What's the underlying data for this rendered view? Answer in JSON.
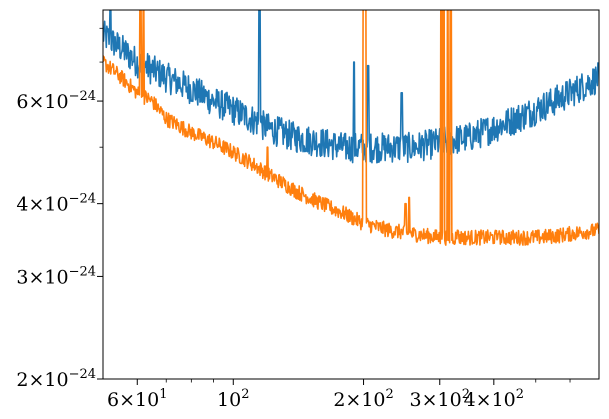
{
  "chart_data": {
    "type": "line",
    "title": "",
    "xlabel": "",
    "ylabel": "",
    "x_scale": "log",
    "y_scale": "log",
    "xlim": [
      50,
      700
    ],
    "ylim": [
      2e-24,
      8.6e-24
    ],
    "grid": false,
    "legend": "none",
    "x_ticks": [
      {
        "value": 60,
        "mant": "6",
        "exp": "1"
      },
      {
        "value": 100,
        "mant": "",
        "exp": "2"
      },
      {
        "value": 200,
        "mant": "2",
        "exp": "2"
      },
      {
        "value": 300,
        "mant": "3",
        "exp": "2"
      },
      {
        "value": 400,
        "mant": "4",
        "exp": "2"
      }
    ],
    "y_ticks": [
      {
        "value": 2e-24,
        "mant": "2",
        "exp": "−24"
      },
      {
        "value": 3e-24,
        "mant": "3",
        "exp": "−24"
      },
      {
        "value": 4e-24,
        "mant": "4",
        "exp": "−24"
      },
      {
        "value": 6e-24,
        "mant": "6",
        "exp": "−24"
      }
    ],
    "series": [
      {
        "color": "#1f77b4",
        "points": [
          [
            50,
            7.8e-24
          ],
          [
            55,
            7.4e-24
          ],
          [
            60,
            7e-24
          ],
          [
            65,
            6.8e-24
          ],
          [
            70,
            6.6e-24
          ],
          [
            80,
            6.3e-24
          ],
          [
            90,
            6e-24
          ],
          [
            100,
            5.8e-24
          ],
          [
            110,
            5.6e-24
          ],
          [
            120,
            5.4e-24
          ],
          [
            140,
            5.2e-24
          ],
          [
            160,
            5.1e-24
          ],
          [
            180,
            5e-24
          ],
          [
            200,
            5e-24
          ],
          [
            230,
            5e-24
          ],
          [
            260,
            5e-24
          ],
          [
            300,
            5.1e-24
          ],
          [
            350,
            5.2e-24
          ],
          [
            400,
            5.4e-24
          ],
          [
            450,
            5.6e-24
          ],
          [
            500,
            5.8e-24
          ],
          [
            550,
            6e-24
          ],
          [
            600,
            6.2e-24
          ],
          [
            650,
            6.4e-24
          ],
          [
            700,
            6.6e-24
          ]
        ],
        "noise": 0.06,
        "spikes": [
          [
            52,
            9e-24
          ],
          [
            115,
            9e-24
          ],
          [
            190,
            7e-24
          ],
          [
            205,
            6.9e-24
          ],
          [
            245,
            6.2e-24
          ]
        ]
      },
      {
        "color": "#ff7f0e",
        "points": [
          [
            50,
            7e-24
          ],
          [
            55,
            6.6e-24
          ],
          [
            60,
            6.2e-24
          ],
          [
            65,
            6e-24
          ],
          [
            70,
            5.6e-24
          ],
          [
            80,
            5.3e-24
          ],
          [
            90,
            5.1e-24
          ],
          [
            100,
            4.9e-24
          ],
          [
            110,
            4.7e-24
          ],
          [
            120,
            4.5e-24
          ],
          [
            140,
            4.2e-24
          ],
          [
            160,
            4e-24
          ],
          [
            180,
            3.85e-24
          ],
          [
            200,
            3.7e-24
          ],
          [
            230,
            3.6e-24
          ],
          [
            260,
            3.55e-24
          ],
          [
            300,
            3.5e-24
          ],
          [
            350,
            3.5e-24
          ],
          [
            400,
            3.5e-24
          ],
          [
            450,
            3.5e-24
          ],
          [
            500,
            3.5e-24
          ],
          [
            550,
            3.52e-24
          ],
          [
            600,
            3.55e-24
          ],
          [
            650,
            3.58e-24
          ],
          [
            700,
            3.6e-24
          ]
        ],
        "noise": 0.03,
        "spikes": [
          [
            61,
            9e-24
          ],
          [
            62,
            9e-24
          ],
          [
            120,
            5e-24
          ],
          [
            200,
            9e-24
          ],
          [
            202,
            9e-24
          ],
          [
            250,
            4e-24
          ],
          [
            255,
            4.1e-24
          ],
          [
            302,
            9e-24
          ],
          [
            306,
            9e-24
          ],
          [
            313,
            9e-24
          ],
          [
            318,
            9e-24
          ],
          [
            330,
            3.6e-24
          ],
          [
            410,
            3.55e-24
          ]
        ]
      }
    ]
  }
}
